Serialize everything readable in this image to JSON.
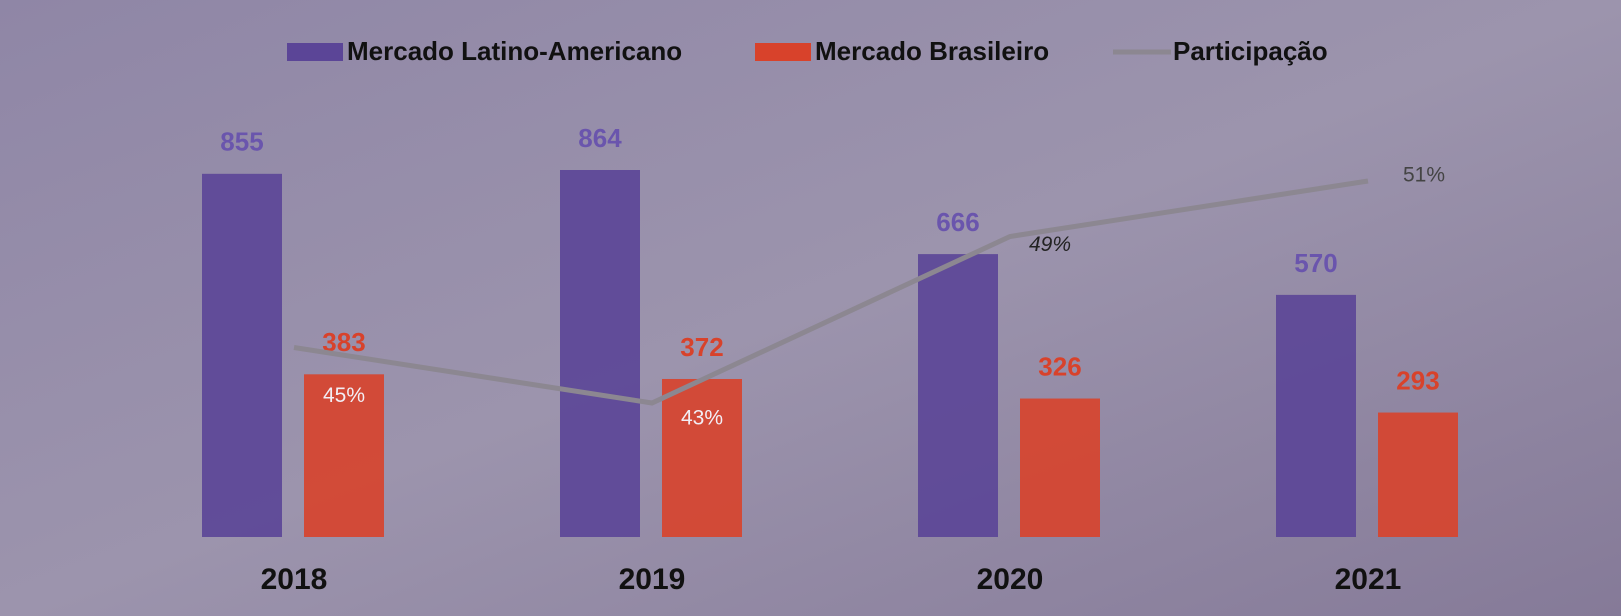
{
  "chart_data": {
    "type": "bar",
    "categories": [
      "2018",
      "2019",
      "2020",
      "2021"
    ],
    "series": [
      {
        "name": "Mercado Latino-Americano",
        "color": "#5b4597",
        "values": [
          855,
          864,
          666,
          570
        ]
      },
      {
        "name": "Mercado Brasileiro",
        "color": "#d8422b",
        "values": [
          383,
          372,
          326,
          293
        ]
      },
      {
        "name": "Participação",
        "type": "line",
        "axis": "y2",
        "color": "#8c8791",
        "values": [
          45,
          43,
          49,
          51
        ],
        "value_labels": [
          "45%",
          "43%",
          "49%",
          "51%"
        ]
      }
    ]
  }
}
